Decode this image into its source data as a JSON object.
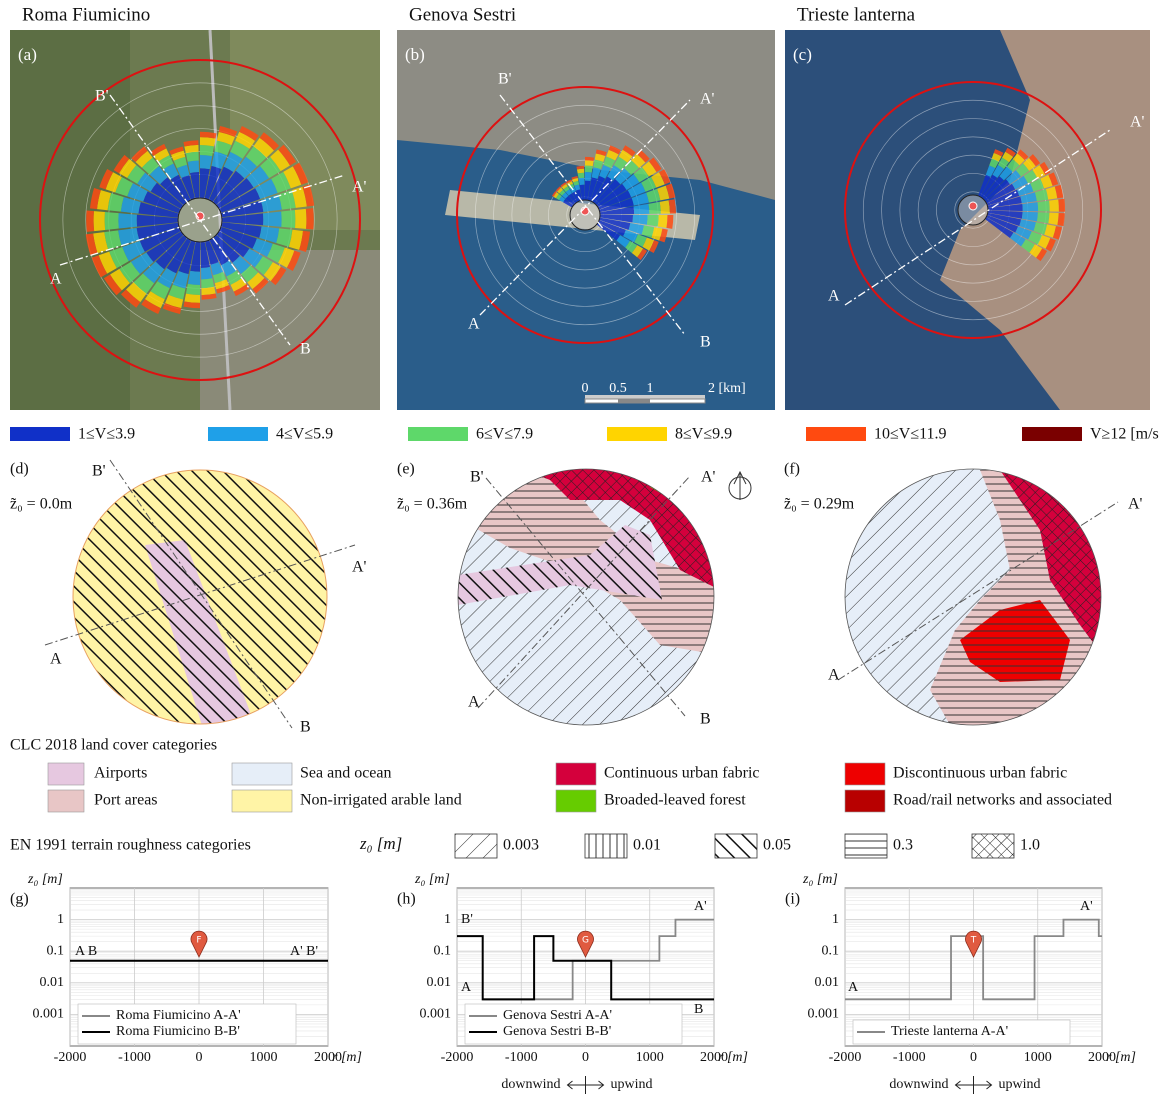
{
  "maps": [
    {
      "label": "(a)",
      "title": "Roma Fiumicino",
      "markers": [
        "A",
        "A'",
        "B",
        "B'"
      ]
    },
    {
      "label": "(b)",
      "title": "Genova Sestri",
      "markers": [
        "A",
        "A'",
        "B",
        "B'"
      ],
      "scale_labels": [
        "0",
        "0.5",
        "1",
        "2 [km]"
      ]
    },
    {
      "label": "(c)",
      "title": "Trieste lanterna",
      "markers": [
        "A",
        "A'"
      ]
    }
  ],
  "speed_legend": [
    {
      "label": "1≤V≤3.9",
      "color": "#1030c8"
    },
    {
      "label": "4≤V≤5.9",
      "color": "#1fa0e8"
    },
    {
      "label": "6≤V≤7.9",
      "color": "#5ed86a"
    },
    {
      "label": "8≤V≤9.9",
      "color": "#ffd400"
    },
    {
      "label": "10≤V≤11.9",
      "color": "#ff4a10"
    },
    {
      "label": "V≥12 [m/s]",
      "color": "#7a0000"
    }
  ],
  "land_cover": [
    {
      "label": "(d)",
      "roughness": "z̃₀ = 0.0m",
      "markers": [
        "A",
        "A'",
        "B",
        "B'"
      ]
    },
    {
      "label": "(e)",
      "roughness": "z̃₀ = 0.36m",
      "markers": [
        "A",
        "A'",
        "B",
        "B'"
      ]
    },
    {
      "label": "(f)",
      "roughness": "z̃₀ = 0.29m",
      "markers": [
        "A",
        "A'"
      ]
    }
  ],
  "land_cover_legend": {
    "title": "CLC 2018 land cover categories",
    "items": [
      {
        "label": "Airports",
        "color": "#e6c8e0"
      },
      {
        "label": "Port areas",
        "color": "#e8c6c6"
      },
      {
        "label": "Sea and ocean",
        "color": "#e6eef8"
      },
      {
        "label": "Non-irrigated arable land",
        "color": "#fff4a6"
      },
      {
        "label": "Continuous urban fabric",
        "color": "#d4003c"
      },
      {
        "label": "Broaded-leaved forest",
        "color": "#66cc00"
      },
      {
        "label": "Discontinuous urban fabric",
        "color": "#ee0000"
      },
      {
        "label": "Road/rail networks and associated",
        "color": "#b80000"
      }
    ]
  },
  "roughness_legend": {
    "title": "EN 1991 terrain roughness categories",
    "symbol": "z₀ [m]",
    "items": [
      "0.003",
      "0.01",
      "0.05",
      "0.3",
      "1.0"
    ]
  },
  "chart_data": [
    {
      "type": "line",
      "label": "(g)",
      "pin": "F",
      "xlabel": "r [m]",
      "ylabel": "z₀ [m]",
      "xlim": [
        -2000,
        2000
      ],
      "ylim": [
        0.0001,
        10
      ],
      "log_y": true,
      "grid": true,
      "xticks": [
        -2000,
        -1000,
        0,
        1000,
        2000
      ],
      "yticks": [
        0.001,
        0.01,
        0.1,
        1
      ],
      "series": [
        {
          "name": "Roma Fiumicino A-A'",
          "color": "#888888",
          "x": [
            -2000,
            2000
          ],
          "values": [
            0.05,
            0.05
          ]
        },
        {
          "name": "Roma Fiumicino B-B'",
          "color": "#000000",
          "x": [
            -2000,
            2000
          ],
          "values": [
            0.05,
            0.05
          ]
        }
      ],
      "annotations": [
        "A B",
        "A' B'"
      ]
    },
    {
      "type": "line",
      "label": "(h)",
      "pin": "G",
      "xlabel": "r [m]",
      "ylabel": "z₀ [m]",
      "xlim": [
        -2000,
        2000
      ],
      "ylim": [
        0.0001,
        10
      ],
      "log_y": true,
      "grid": true,
      "xticks": [
        -2000,
        -1000,
        0,
        1000,
        2000
      ],
      "yticks": [
        0.001,
        0.01,
        0.1,
        1
      ],
      "series": [
        {
          "name": "Genova Sestri A-A'",
          "color": "#888888",
          "x": [
            -1600,
            -200,
            -200,
            1150,
            1150,
            1400,
            1400,
            2000
          ],
          "values": [
            0.003,
            0.003,
            0.05,
            0.05,
            0.3,
            0.3,
            1,
            1
          ]
        },
        {
          "name": "Genova Sestri B-B'",
          "color": "#000000",
          "x": [
            -2000,
            -1600,
            -1600,
            -800,
            -800,
            -500,
            -500,
            400,
            400,
            2000
          ],
          "values": [
            0.3,
            0.3,
            0.003,
            0.003,
            0.3,
            0.3,
            0.05,
            0.05,
            0.003,
            0.003
          ]
        }
      ],
      "annotations": [
        "B'",
        "A",
        "A'",
        "B"
      ],
      "direction_labels": [
        "downwind",
        "upwind"
      ]
    },
    {
      "type": "line",
      "label": "(i)",
      "pin": "T",
      "xlabel": "r [m]",
      "ylabel": "z₀ [m]",
      "xlim": [
        -2000,
        2000
      ],
      "ylim": [
        0.0001,
        10
      ],
      "log_y": true,
      "grid": true,
      "xticks": [
        -2000,
        -1000,
        0,
        1000,
        2000
      ],
      "yticks": [
        0.001,
        0.01,
        0.1,
        1
      ],
      "series": [
        {
          "name": "Trieste lanterna A-A'",
          "color": "#888888",
          "x": [
            -2000,
            -350,
            -350,
            150,
            150,
            950,
            950,
            1400,
            1400,
            1950,
            1950,
            2000
          ],
          "values": [
            0.003,
            0.003,
            0.3,
            0.3,
            0.003,
            0.003,
            0.3,
            0.3,
            1,
            1,
            0.3,
            0.3
          ]
        }
      ],
      "annotations": [
        "A",
        "A'"
      ],
      "direction_labels": [
        "downwind",
        "upwind"
      ]
    }
  ]
}
